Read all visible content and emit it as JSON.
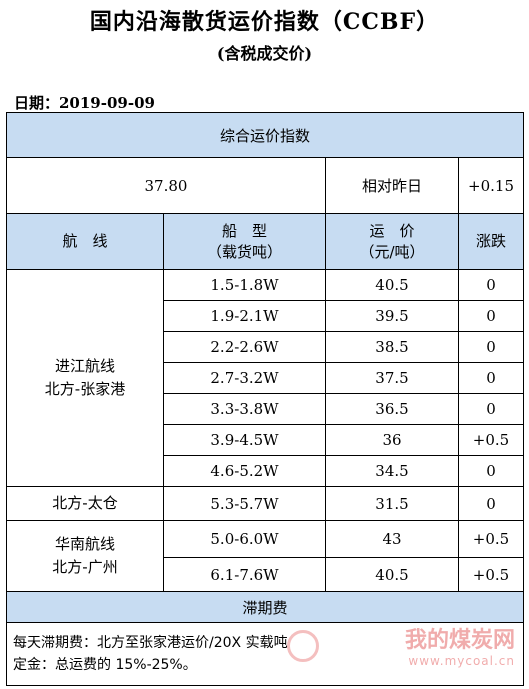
{
  "header": {
    "title": "国内沿海散货运价指数（CCBF）",
    "subtitle": "(含税成交价)",
    "date": "日期：2019-09-09"
  },
  "index": {
    "section_label": "综合运价指数",
    "value": "37.80",
    "change_label": "相对昨日",
    "change_value": "+0.15"
  },
  "columns": {
    "route": "航　线",
    "ship_type": "船　型",
    "ship_type_unit": "（载货吨）",
    "price": "运　价",
    "price_unit": "（元/吨）",
    "change": "涨跌"
  },
  "groups": [
    {
      "route_line1": "进江航线",
      "route_line2": "北方-张家港",
      "rows": [
        {
          "ship": "1.5-1.8W",
          "price": "40.5",
          "change": "0"
        },
        {
          "ship": "1.9-2.1W",
          "price": "39.5",
          "change": "0"
        },
        {
          "ship": "2.2-2.6W",
          "price": "38.5",
          "change": "0"
        },
        {
          "ship": "2.7-3.2W",
          "price": "37.5",
          "change": "0"
        },
        {
          "ship": "3.3-3.8W",
          "price": "36.5",
          "change": "0"
        },
        {
          "ship": "3.9-4.5W",
          "price": "36",
          "change": "+0.5"
        },
        {
          "ship": "4.6-5.2W",
          "price": "34.5",
          "change": "0"
        }
      ]
    },
    {
      "route_line1": "北方-太仓",
      "route_line2": "",
      "rows": [
        {
          "ship": "5.3-5.7W",
          "price": "31.5",
          "change": "0"
        }
      ]
    },
    {
      "route_line1": "华南航线",
      "route_line2": "北方-广州",
      "rows": [
        {
          "ship": "5.0-6.0W",
          "price": "43",
          "change": "+0.5"
        },
        {
          "ship": "6.1-7.6W",
          "price": "40.5",
          "change": "+0.5"
        }
      ]
    }
  ],
  "demurrage": {
    "label": "滞期费",
    "line1": "每天滞期费：北方至张家港运价/20X 实载吨",
    "line2": "定金：总运费的 15%-25%。"
  },
  "watermark": {
    "text": "我的煤炭网",
    "url": "www.mycoal.cn",
    "color": "#e04848"
  },
  "colors": {
    "header_fill": "#c7dcf2"
  }
}
